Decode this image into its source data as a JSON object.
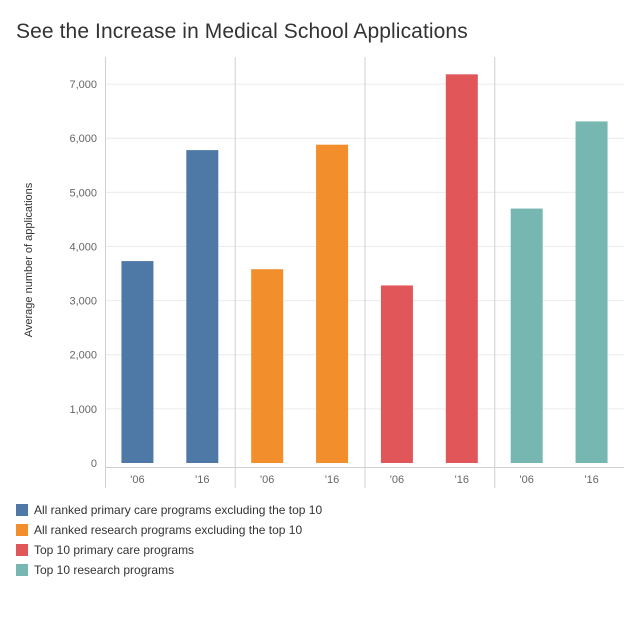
{
  "chart_data": {
    "type": "bar",
    "title": "See the Increase in Medical School Applications",
    "ylabel": "Average number of applications",
    "ylim": [
      0,
      7500
    ],
    "yticks": [
      0,
      1000,
      2000,
      3000,
      4000,
      5000,
      6000,
      7000
    ],
    "ytick_labels": [
      "0",
      "1,000",
      "2,000",
      "3,000",
      "4,000",
      "5,000",
      "6,000",
      "7,000"
    ],
    "categories": [
      "'06",
      "'16"
    ],
    "series": [
      {
        "name": "All ranked primary care programs excluding the top 10",
        "color": "#4e79a7",
        "values": [
          3730,
          5780
        ]
      },
      {
        "name": "All ranked research programs excluding the top 10",
        "color": "#f28e2b",
        "values": [
          3580,
          5880
        ]
      },
      {
        "name": "Top 10 primary care programs",
        "color": "#e15759",
        "values": [
          3280,
          7180
        ]
      },
      {
        "name": "Top 10 research programs",
        "color": "#76b7b2",
        "values": [
          4700,
          6310
        ]
      }
    ],
    "grid": true,
    "legend_position": "bottom-left"
  }
}
